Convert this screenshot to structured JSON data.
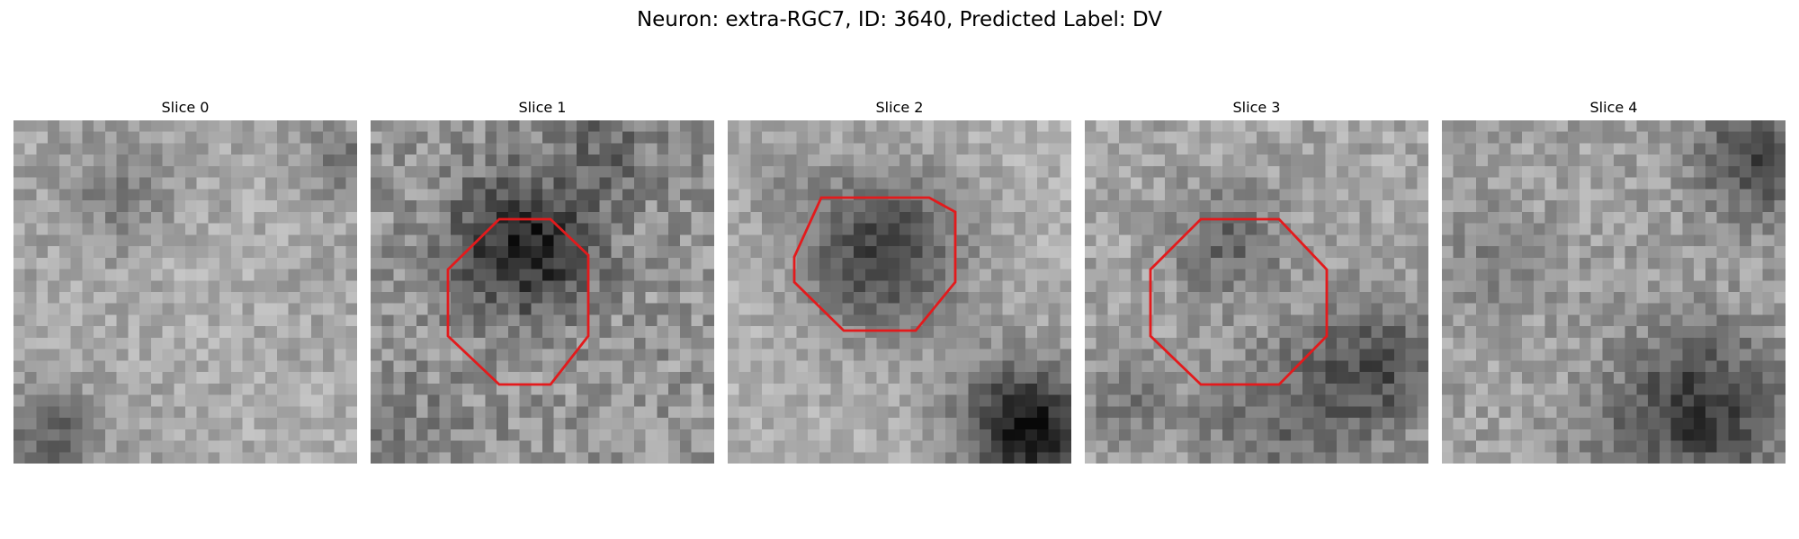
{
  "figure": {
    "title": "Neuron: extra-RGC7, ID: 3640, Predicted Label: DV"
  },
  "colors": {
    "background": "#ffffff",
    "roi_outline": "#e31a1c",
    "colormap": "grayscale"
  },
  "panels": [
    {
      "title": "Slice 0",
      "has_roi": false
    },
    {
      "title": "Slice 1",
      "has_roi": true
    },
    {
      "title": "Slice 2",
      "has_roi": true
    },
    {
      "title": "Slice 3",
      "has_roi": true
    },
    {
      "title": "Slice 4",
      "has_roi": false
    }
  ]
}
